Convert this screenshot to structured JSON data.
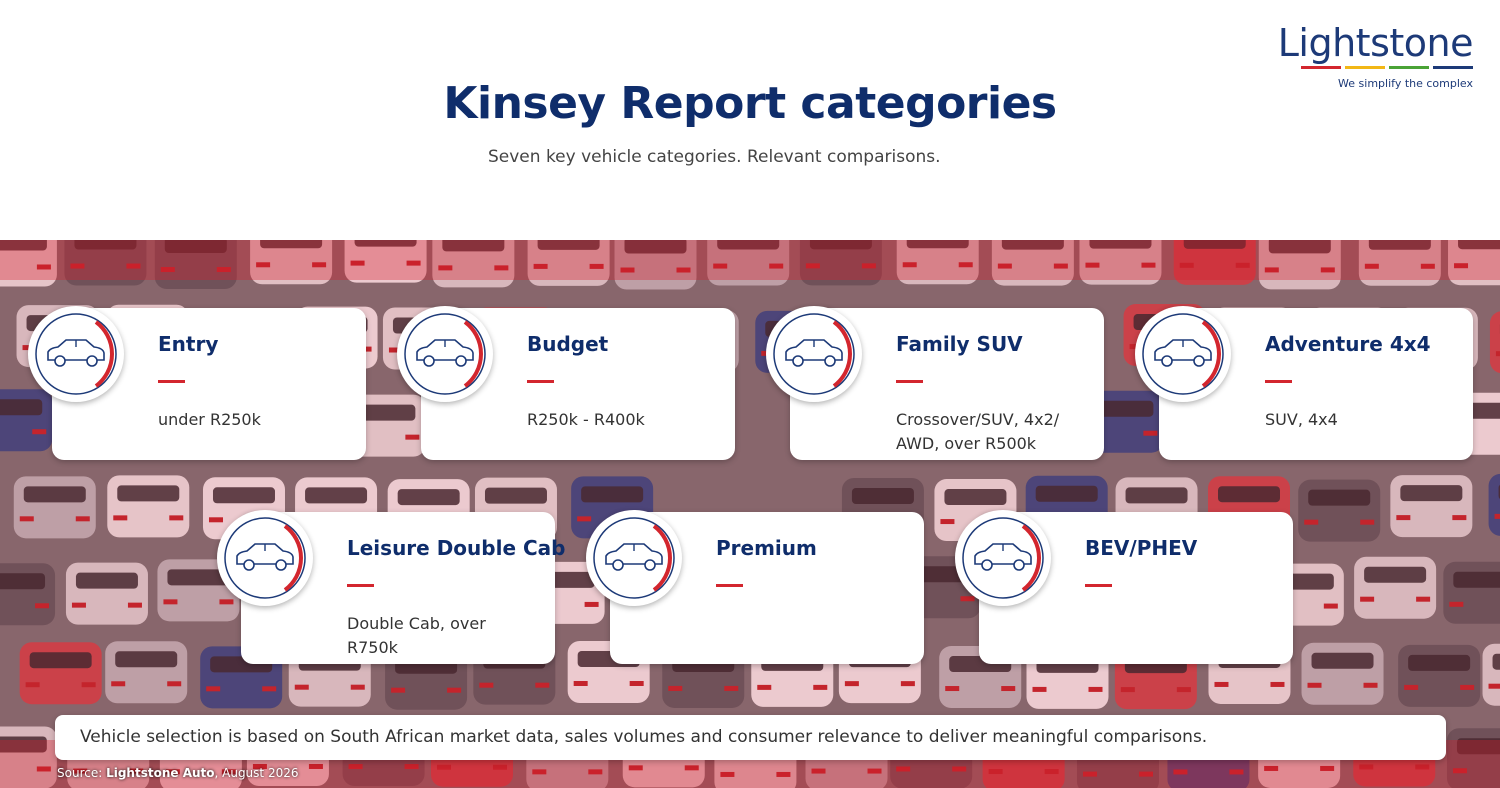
{
  "header": {
    "title": "Kinsey Report categories",
    "subtitle": "Seven key vehicle categories. Relevant comparisons."
  },
  "logo": {
    "name": "Lightstone",
    "tagline": "We simplify the complex"
  },
  "categories": [
    {
      "name": "Entry",
      "description": "under R250k"
    },
    {
      "name": "Budget",
      "description": "R250k - R400k"
    },
    {
      "name": "Family SUV",
      "description": "Crossover/SUV, 4x2/ AWD, over R500k"
    },
    {
      "name": "Adventure 4x4",
      "description": "SUV, 4x4"
    },
    {
      "name": "Leisure Double Cab",
      "description": "Double Cab, over R750k"
    },
    {
      "name": "Premium"
    },
    {
      "name": "BEV/PHEV"
    }
  ],
  "footer": {
    "note": "Vehicle selection is based on South African market data, sales volumes and consumer relevance to deliver meaningful comparisons.",
    "source": [
      "Source: ",
      "Lightstone Auto",
      ", August 2026"
    ]
  }
}
